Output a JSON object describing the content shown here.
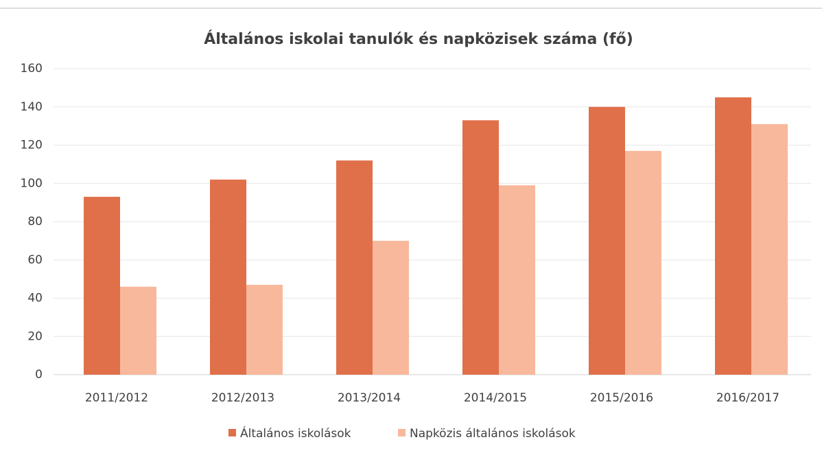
{
  "chart_data": {
    "type": "bar",
    "title": "Általános iskolai tanulók és napközisek száma (fő)",
    "categories": [
      "2011/2012",
      "2012/2013",
      "2013/2014",
      "2014/2015",
      "2015/2016",
      "2016/2017"
    ],
    "series": [
      {
        "name": "Általános iskolások",
        "color": "#e0704a",
        "values": [
          93,
          102,
          112,
          133,
          140,
          145
        ]
      },
      {
        "name": "Napközis általános iskolások",
        "color": "#f8b89c",
        "values": [
          46,
          47,
          70,
          99,
          117,
          131
        ]
      }
    ],
    "ylim": [
      0,
      160
    ],
    "yticks": [
      0,
      20,
      40,
      60,
      80,
      100,
      120,
      140,
      160
    ],
    "grid": true,
    "legend": "bottom"
  }
}
